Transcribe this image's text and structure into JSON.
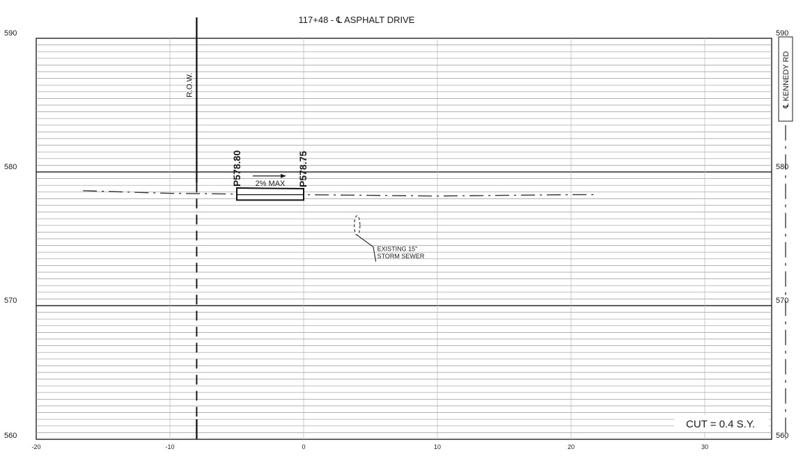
{
  "drawing": {
    "title": "117+48 - ℄ ASPHALT DRIVE",
    "row_label": "R.O.W.",
    "kennedy_label": "℄ KENNEDY RD",
    "slope_label": "2% MAX",
    "pt_left_label": "P578.80",
    "pt_right_label": "P578.75",
    "sewer_label_1": "EXISTING 15\"",
    "sewer_label_2": "STORM SEWER",
    "cut_label": "CUT = 0.4 S.Y.",
    "colors": {
      "ink": "#1a1a1a",
      "grid_minor": "#9a9a9a",
      "grid_major": "#2a2a2a"
    }
  },
  "chart_data": {
    "type": "cross-section",
    "title": "117+48 - ℄ ASPHALT DRIVE",
    "x_ticks": [
      -20,
      -10,
      0,
      10,
      20,
      30
    ],
    "y_ticks": [
      590,
      580,
      570,
      560
    ],
    "xlim": [
      -20,
      35
    ],
    "ylim": [
      560,
      590
    ],
    "minor_grid_elevation_step": 0.5,
    "minor_grid_offset_step": 10,
    "row_offset": -8,
    "existing_ground": [
      [
        -16.5,
        578.6
      ],
      [
        -10,
        578.4
      ],
      [
        -5,
        578.35
      ],
      [
        0,
        578.3
      ],
      [
        5,
        578.25
      ],
      [
        10,
        578.2
      ],
      [
        15,
        578.25
      ],
      [
        20,
        578.3
      ],
      [
        22,
        578.3
      ]
    ],
    "proposed_drive": {
      "top_left": [
        -5,
        578.8
      ],
      "top_right": [
        0,
        578.75
      ],
      "bottom": 577.9,
      "labels": [
        "P578.80",
        "P578.75"
      ],
      "slope": "2% MAX"
    },
    "storm_sewer": {
      "center": [
        4,
        576.0
      ],
      "label": "EXISTING 15\" STORM SEWER"
    },
    "annotations": [
      "R.O.W.",
      "℄ KENNEDY RD",
      "CUT = 0.4 S.Y."
    ]
  }
}
